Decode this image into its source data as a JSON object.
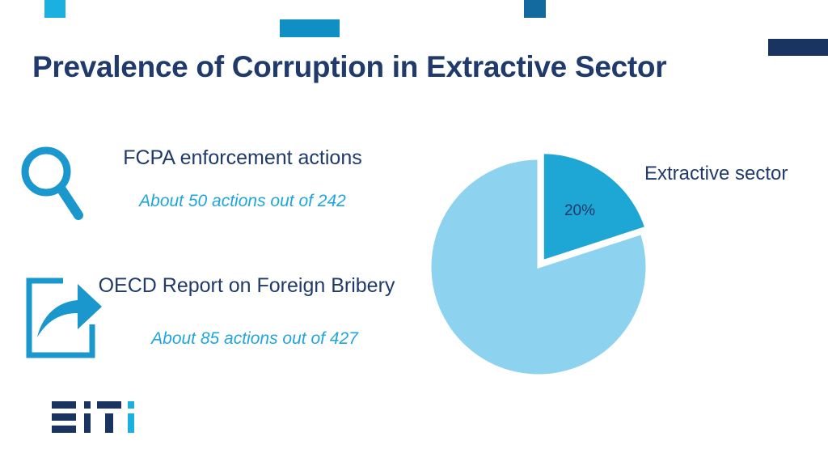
{
  "page": {
    "title": "Prevalence of Corruption in Extractive Sector"
  },
  "items": [
    {
      "icon": "search-icon",
      "title": "FCPA enforcement actions",
      "subtitle": "About 50 actions out of 242"
    },
    {
      "icon": "share-arrow-icon",
      "title": "OECD Report on Foreign Bribery",
      "subtitle": "About 85 actions out of 427"
    }
  ],
  "logo": {
    "text": "EITI",
    "colors": [
      "#1a3461",
      "#1a3461",
      "#1a3461",
      "#1ab0e0"
    ]
  },
  "colors": {
    "title": "#1f3a6b",
    "accent": "#1ea6dc",
    "pie_highlight": "#1ea6d4",
    "pie_rest": "#8dd3f0"
  },
  "chart_data": {
    "type": "pie",
    "slices": [
      {
        "label": "Extractive sector",
        "value": 20,
        "data_label": "20%",
        "color": "#1ea6d4",
        "exploded": true
      },
      {
        "label": "",
        "value": 80,
        "data_label": "",
        "color": "#8dd3f0",
        "exploded": false
      }
    ],
    "legend_text": "Extractive sector",
    "legend_position": "top-right"
  }
}
